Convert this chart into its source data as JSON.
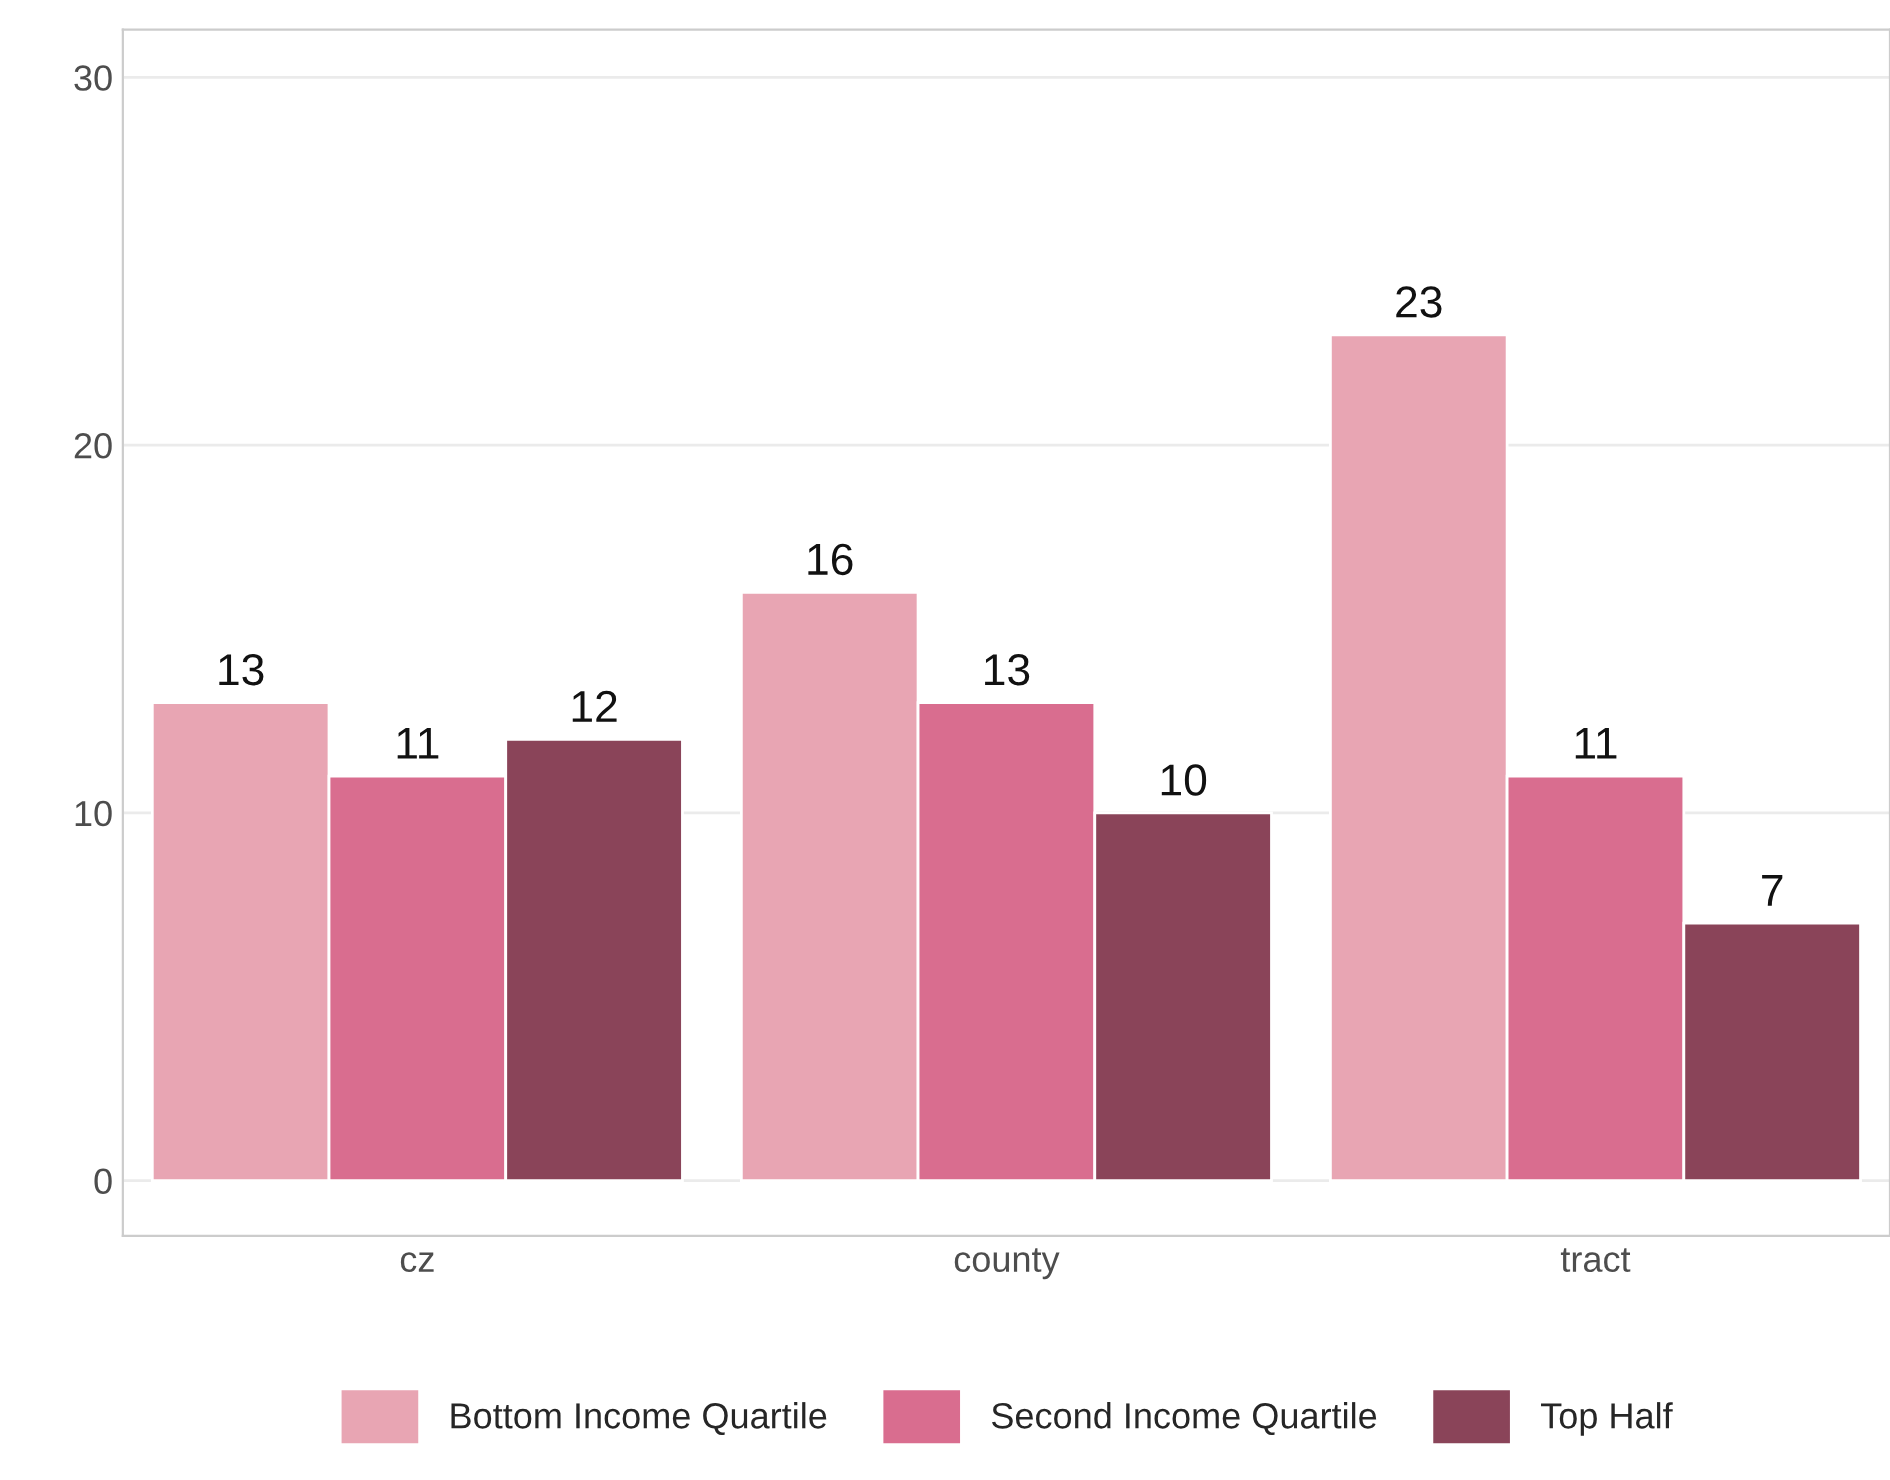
{
  "chart_data": {
    "type": "bar",
    "categories": [
      "cz",
      "county",
      "tract"
    ],
    "series": [
      {
        "name": "Bottom Income Quartile",
        "color": "#e8a5b3",
        "values": [
          13,
          16,
          23
        ]
      },
      {
        "name": "Second Income Quartile",
        "color": "#d96d8f",
        "values": [
          11,
          13,
          11
        ]
      },
      {
        "name": "Top Half",
        "color": "#8a4459",
        "values": [
          12,
          10,
          7
        ]
      }
    ],
    "ylim": [
      -1.5,
      31.3
    ],
    "yticks": [
      0,
      10,
      20,
      30
    ],
    "grid": "y",
    "legend": "bottom",
    "data_labels": true
  }
}
